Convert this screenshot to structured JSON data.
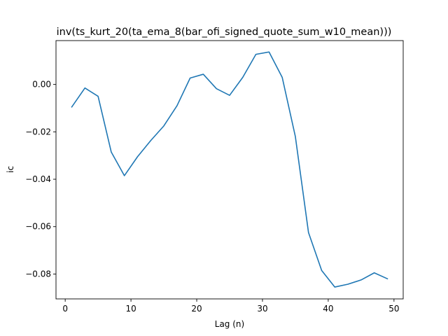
{
  "chart_data": {
    "type": "line",
    "title": "inv(ts_kurt_20(ta_ema_8(bar_ofi_signed_quote_sum_w10_mean)))",
    "xlabel": "Lag (n)",
    "ylabel": "ic",
    "xlim": [
      -1.4,
      51.4
    ],
    "ylim": [
      -0.0905,
      0.0185
    ],
    "x_ticks": [
      0,
      10,
      20,
      30,
      40,
      50
    ],
    "y_ticks": [
      0.0,
      -0.02,
      -0.04,
      -0.06,
      -0.08
    ],
    "y_tick_labels": [
      "0.00",
      "−0.02",
      "−0.04",
      "−0.06",
      "−0.08"
    ],
    "grid": false,
    "series": [
      {
        "color": "#1f77b4",
        "x": [
          1,
          3,
          5,
          7,
          9,
          11,
          13,
          15,
          17,
          19,
          21,
          23,
          25,
          27,
          29,
          31,
          33,
          35,
          37,
          39,
          41,
          43,
          45,
          47,
          49
        ],
        "y": [
          -0.0095,
          -0.0015,
          -0.005,
          -0.0285,
          -0.0385,
          -0.0305,
          -0.0237,
          -0.0175,
          -0.009,
          0.0027,
          0.0043,
          -0.0018,
          -0.0046,
          0.003,
          0.0127,
          0.0137,
          0.003,
          -0.022,
          -0.0625,
          -0.0785,
          -0.0855,
          -0.0843,
          -0.0825,
          -0.0795,
          -0.082
        ]
      }
    ]
  }
}
